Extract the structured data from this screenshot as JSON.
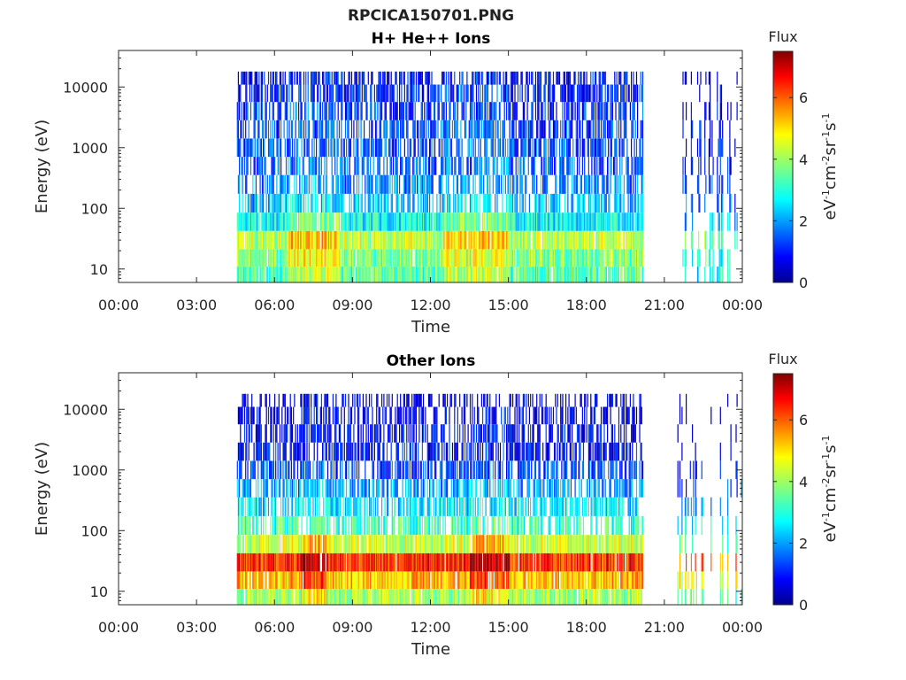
{
  "title": "RPCICA150701.PNG",
  "chart_data": [
    {
      "type": "heatmap",
      "title": "H+ He++ Ions",
      "xlabel": "Time",
      "ylabel": "Energy (eV)",
      "x_ticks": [
        "00:00",
        "03:00",
        "06:00",
        "09:00",
        "12:00",
        "15:00",
        "18:00",
        "21:00",
        "00:00"
      ],
      "x_range_hours": [
        0,
        24
      ],
      "y_scale": "log",
      "y_ticks": [
        10,
        100,
        1000,
        10000
      ],
      "y_tick_labels": [
        "10",
        "100",
        "1000",
        "10000"
      ],
      "ylim": [
        6,
        40000
      ],
      "data_intervals_hours": [
        [
          4.55,
          20.15
        ],
        [
          21.5,
          24.0
        ]
      ],
      "colorbar": {
        "label": "Flux",
        "unit": "eV-1cm-2sr-1s-1",
        "range": [
          0,
          7.5
        ],
        "ticks": [
          0,
          2,
          4,
          6
        ],
        "colormap": "jet"
      },
      "energy_bands_eV": [
        8,
        15,
        30,
        60,
        120,
        250,
        500,
        1000,
        2000,
        4000,
        8000,
        15000
      ],
      "band_flux_typical": [
        3.4,
        3.7,
        4.2,
        2.8,
        2.3,
        1.9,
        1.6,
        1.5,
        1.4,
        1.3,
        1.1,
        0.9
      ],
      "peak_flux_periods_hours": [
        [
          6.5,
          8.5
        ],
        [
          12.5,
          15.0
        ]
      ]
    },
    {
      "type": "heatmap",
      "title": "Other Ions",
      "xlabel": "Time",
      "ylabel": "Energy (eV)",
      "x_ticks": [
        "00:00",
        "03:00",
        "06:00",
        "09:00",
        "12:00",
        "15:00",
        "18:00",
        "21:00",
        "00:00"
      ],
      "x_range_hours": [
        0,
        24
      ],
      "y_scale": "log",
      "y_ticks": [
        10,
        100,
        1000,
        10000
      ],
      "y_tick_labels": [
        "10",
        "100",
        "1000",
        "10000"
      ],
      "ylim": [
        6,
        40000
      ],
      "data_intervals_hours": [
        [
          4.55,
          20.15
        ],
        [
          21.5,
          24.0
        ]
      ],
      "colorbar": {
        "label": "Flux",
        "unit": "eV-1cm-2sr-1s-1",
        "range": [
          0,
          7.5
        ],
        "ticks": [
          0,
          2,
          4,
          6
        ],
        "colormap": "jet"
      },
      "energy_bands_eV": [
        8,
        15,
        30,
        60,
        120,
        250,
        500,
        1000,
        2000,
        4000,
        8000,
        15000
      ],
      "band_flux_typical": [
        4.0,
        5.2,
        6.3,
        4.3,
        3.2,
        2.6,
        2.1,
        1.4,
        1.0,
        0.8,
        0.6,
        0.5
      ],
      "peak_flux_periods_hours": [
        [
          7.0,
          8.0
        ],
        [
          13.5,
          15.0
        ]
      ]
    }
  ]
}
